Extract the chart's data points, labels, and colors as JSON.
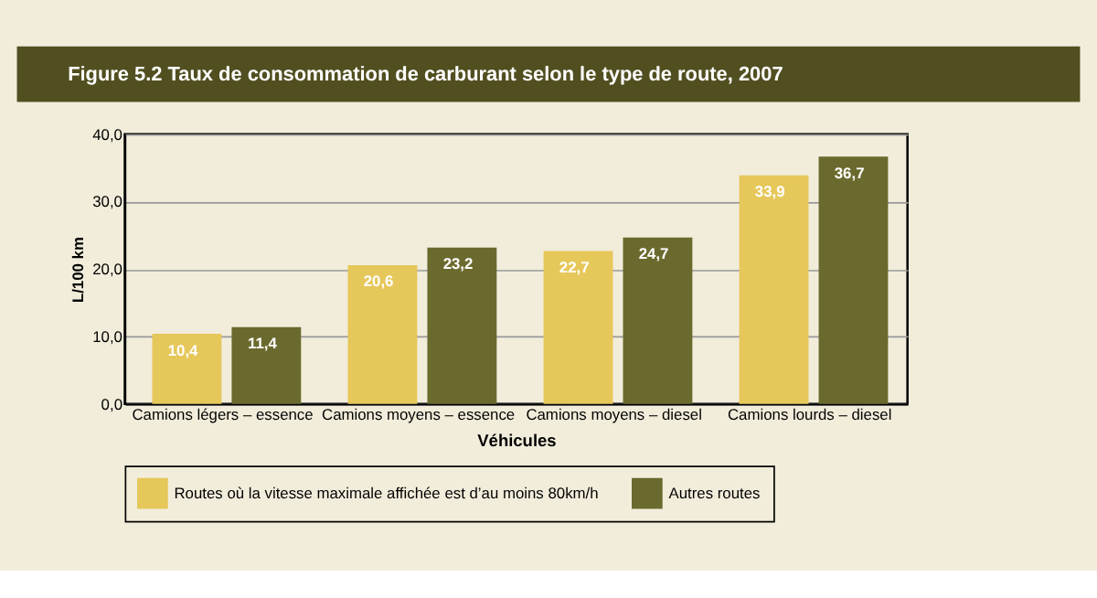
{
  "chart_data": {
    "type": "bar",
    "title": "Figure 5.2  Taux de consommation de carburant selon le type de route, 2007",
    "xlabel": "Véhicules",
    "ylabel": "L/100 km",
    "categories": [
      "Camions légers – essence",
      "Camions moyens – essence",
      "Camions moyens – diesel",
      "Camions lourds – diesel"
    ],
    "series": [
      {
        "name": "Routes où la vitesse maximale affichée est d’au moins 80km/h",
        "color": "#e6c75a",
        "values": [
          10.4,
          20.6,
          22.7,
          33.9
        ],
        "value_labels": [
          "10,4",
          "20,6",
          "22,7",
          "33,9"
        ]
      },
      {
        "name": "Autres routes",
        "color": "#6b6a2e",
        "values": [
          11.4,
          23.2,
          24.7,
          36.7
        ],
        "value_labels": [
          "11,4",
          "23,2",
          "24,7",
          "36,7"
        ]
      }
    ],
    "ylim": [
      0,
      40
    ],
    "yticks": [
      {
        "value": 0,
        "label": "0,0"
      },
      {
        "value": 10,
        "label": "10,0"
      },
      {
        "value": 20,
        "label": "20,0"
      },
      {
        "value": 30,
        "label": "30,0"
      },
      {
        "value": 40,
        "label": "40,0"
      }
    ],
    "grid": "y",
    "legend": "bottom"
  }
}
